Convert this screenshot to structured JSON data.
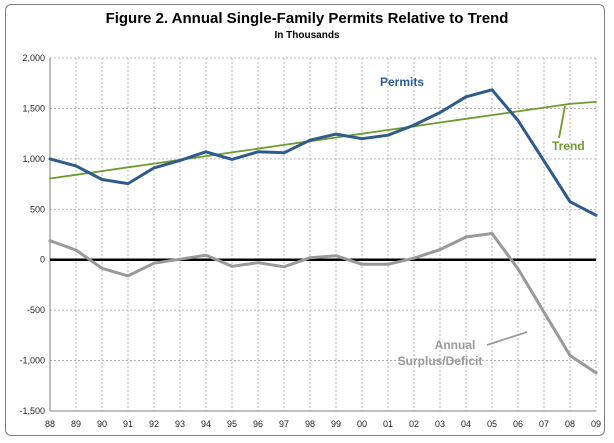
{
  "header": {
    "title": "Figure 2.  Annual Single-Family Permits Relative to Trend",
    "subtitle": "In Thousands"
  },
  "colors": {
    "permits": "#2e5b8c",
    "trend": "#6e9a2e",
    "surplus": "#999999",
    "zero_line": "#000000",
    "grid": "#a6a6a6",
    "axis": "#7f7f7f"
  },
  "chart_data": {
    "type": "line",
    "title": "Figure 2.  Annual Single-Family Permits Relative to Trend",
    "subtitle": "In Thousands",
    "xlabel": "",
    "ylabel": "",
    "categories": [
      "88",
      "89",
      "90",
      "91",
      "92",
      "93",
      "94",
      "95",
      "96",
      "97",
      "98",
      "99",
      "00",
      "01",
      "02",
      "03",
      "04",
      "05",
      "06",
      "07",
      "08",
      "09"
    ],
    "y_tick_labels": [
      "2,000",
      "1,500",
      "1,000",
      "500",
      "0",
      "-500",
      "-1,000",
      "-1,500"
    ],
    "y_ticks": [
      2000,
      1500,
      1000,
      500,
      0,
      -500,
      -1000,
      -1500
    ],
    "ylim": [
      -1500,
      2000
    ],
    "grid": true,
    "series": [
      {
        "name": "Permits",
        "color": "#2e5b8c",
        "values": [
          1000,
          930,
          795,
          755,
          910,
          985,
          1070,
          995,
          1070,
          1060,
          1185,
          1245,
          1200,
          1235,
          1335,
          1460,
          1615,
          1685,
          1380,
          980,
          575,
          440
        ]
      },
      {
        "name": "Trend",
        "color": "#6e9a2e",
        "values": [
          805,
          842,
          879,
          916,
          953,
          990,
          1027,
          1064,
          1101,
          1138,
          1175,
          1212,
          1249,
          1286,
          1323,
          1360,
          1397,
          1434,
          1471,
          1508,
          1545,
          1565
        ]
      },
      {
        "name": "Annual Surplus/Deficit",
        "color": "#999999",
        "values": [
          190,
          95,
          -85,
          -160,
          -35,
          5,
          45,
          -65,
          -30,
          -70,
          20,
          40,
          -45,
          -45,
          15,
          100,
          225,
          260,
          -90,
          -520,
          -950,
          -1120
        ]
      }
    ],
    "annotations": [
      {
        "text": "Permits",
        "series": "Permits"
      },
      {
        "text": "Trend",
        "series": "Trend"
      },
      {
        "text": "Annual",
        "series": "Annual Surplus/Deficit"
      },
      {
        "text": "Surplus/Deficit",
        "series": "Annual Surplus/Deficit"
      }
    ]
  }
}
